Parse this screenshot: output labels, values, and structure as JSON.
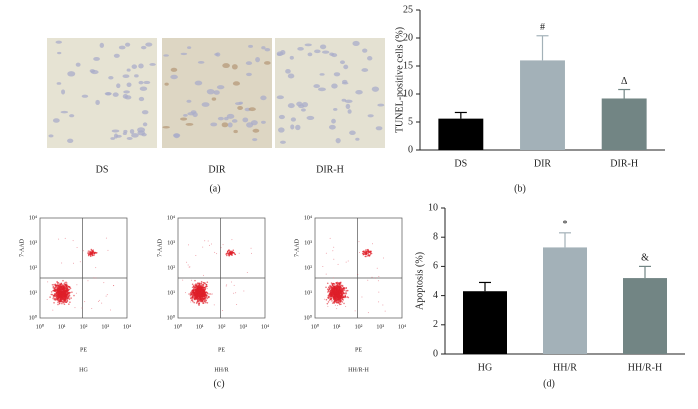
{
  "chart_data": [
    {
      "type": "bar",
      "ylabel": "TUNEL-positive cells (%)",
      "caption": "(b)",
      "categories": [
        "DS",
        "DIR",
        "DIR-H"
      ],
      "values": [
        5.6,
        16,
        9.2
      ],
      "errors": [
        1.1,
        4.4,
        1.6
      ],
      "value_annotations": [
        null,
        "#",
        "Δ"
      ],
      "colors": [
        "#000000",
        "#a3b1b8",
        "#728584"
      ],
      "ylim": [
        0,
        25
      ],
      "yticks": [
        0,
        5,
        10,
        15,
        20,
        25
      ]
    },
    {
      "type": "bar",
      "ylabel": "Apoptosis (%)",
      "caption": "(d)",
      "categories": [
        "HG",
        "HH/R",
        "HH/R-H"
      ],
      "values": [
        4.3,
        7.3,
        5.2
      ],
      "errors": [
        0.6,
        1.0,
        0.8
      ],
      "value_annotations": [
        null,
        "*",
        "&"
      ],
      "colors": [
        "#000000",
        "#a3b1b8",
        "#728584"
      ],
      "ylim": [
        0,
        10
      ],
      "yticks": [
        0,
        2,
        4,
        6,
        8,
        10
      ]
    }
  ],
  "micrographs": {
    "labels": [
      "DS",
      "DIR",
      "DIR-H"
    ],
    "caption": "(a)"
  },
  "flow_cytometry": {
    "x_label": "PE",
    "y_label": "7-AAD",
    "samples": [
      "HG",
      "HH/R",
      "HH/R-H"
    ],
    "axis_ticks": [
      "10⁰",
      "10¹",
      "10²",
      "10³",
      "10⁴"
    ],
    "caption": "(c)"
  }
}
